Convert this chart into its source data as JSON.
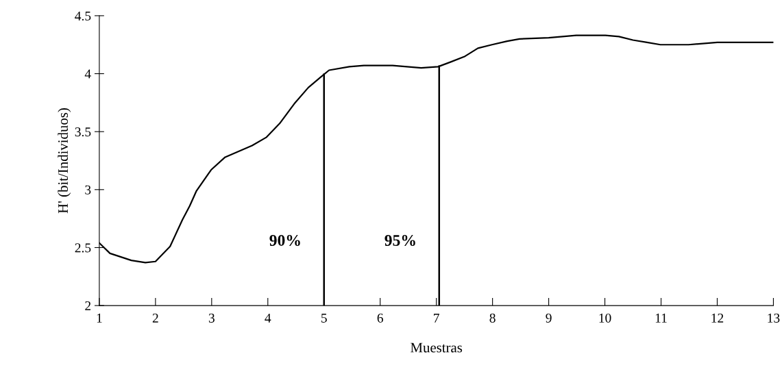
{
  "chart_data": {
    "type": "line",
    "xlabel": "Muestras",
    "ylabel": "H' (bit/Individuos)",
    "x": [
      1.0,
      1.19,
      1.57,
      1.82,
      2.0,
      2.26,
      2.48,
      2.61,
      2.73,
      2.99,
      3.24,
      3.72,
      3.97,
      4.21,
      4.47,
      4.72,
      4.94,
      5.09,
      5.45,
      5.71,
      6.22,
      6.73,
      7.03,
      7.25,
      7.51,
      7.74,
      7.99,
      8.26,
      8.48,
      9.0,
      9.49,
      10.01,
      10.25,
      10.5,
      10.75,
      10.99,
      11.49,
      12.0,
      13.0
    ],
    "series": [
      {
        "color": "#000000",
        "values": [
          2.54,
          2.45,
          2.39,
          2.37,
          2.38,
          2.51,
          2.74,
          2.86,
          2.99,
          3.17,
          3.28,
          3.38,
          3.45,
          3.57,
          3.74,
          3.88,
          3.97,
          4.03,
          4.06,
          4.07,
          4.07,
          4.05,
          4.06,
          4.1,
          4.15,
          4.22,
          4.25,
          4.28,
          4.3,
          4.31,
          4.33,
          4.33,
          4.32,
          4.29,
          4.27,
          4.25,
          4.25,
          4.27,
          4.27
        ]
      }
    ],
    "xlim": [
      1,
      13
    ],
    "xticks": [
      1,
      2,
      3,
      4,
      5,
      6,
      7,
      8,
      9,
      10,
      11,
      12,
      13
    ],
    "ylim": [
      2,
      4.5
    ],
    "yticks": [
      2,
      2.5,
      3,
      3.5,
      4,
      4.5
    ],
    "ref_lines": [
      {
        "axis": "x",
        "value": 5,
        "color": "#000000"
      },
      {
        "axis": "x",
        "value": 7.05,
        "color": "#000000"
      }
    ],
    "annotations": [
      "90%",
      "95%"
    ],
    "grid": false,
    "legend": false,
    "marker": "none",
    "line_style": "solid"
  }
}
